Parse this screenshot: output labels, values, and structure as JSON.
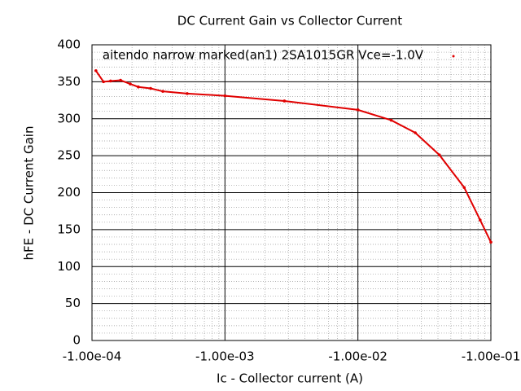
{
  "chart_data": {
    "type": "scatter",
    "title": "DC Current Gain vs Collector Current",
    "x_label": "Ic - Collector current (A)",
    "y_label": "hFE - DC Current Gain",
    "xscale": "log",
    "grid": true,
    "xlim": [
      -0.0001,
      -0.1
    ],
    "ylim": [
      0,
      400
    ],
    "xticks": [
      {
        "value": -0.0001,
        "label": "-1.00e-04"
      },
      {
        "value": -0.001,
        "label": "-1.00e-03"
      },
      {
        "value": -0.01,
        "label": "-1.00e-02"
      },
      {
        "value": -0.1,
        "label": "-1.00e-01"
      }
    ],
    "yticks": [
      0,
      50,
      100,
      150,
      200,
      250,
      300,
      350,
      400
    ],
    "series": [
      {
        "name": "aitendo narrow marked(an1) 2SA1015GR Vce=-1.0V",
        "color": "#e00000",
        "x": [
          -0.000107,
          -0.000122,
          -0.000138,
          -0.000164,
          -0.000194,
          -0.000223,
          -0.000276,
          -0.000341,
          -0.00052,
          -0.001,
          -0.0028,
          -0.01,
          -0.0178,
          -0.027,
          -0.041,
          -0.063,
          -0.083,
          -0.1
        ],
        "values": [
          365,
          350,
          351,
          352,
          347,
          343,
          341,
          337,
          334,
          331,
          324,
          312,
          298,
          281,
          251,
          207,
          163,
          133
        ]
      }
    ]
  }
}
